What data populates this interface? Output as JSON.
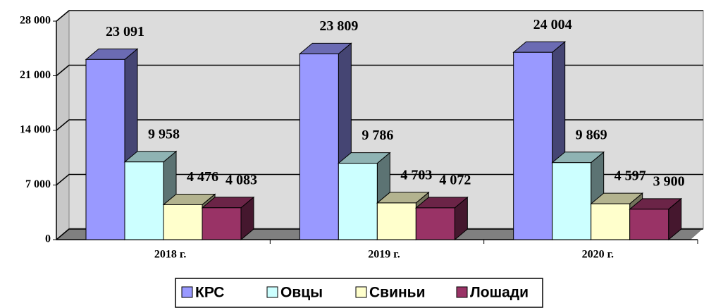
{
  "chart_data": {
    "type": "bar3d",
    "categories": [
      "2018 г.",
      "2019 г.",
      "2020 г."
    ],
    "series": [
      {
        "name": "КРС",
        "color": "#9999ff",
        "values": [
          23091,
          23809,
          24004
        ],
        "value_labels": [
          "23 091",
          "23 809",
          "24 004"
        ]
      },
      {
        "name": "Овцы",
        "color": "#ccffff",
        "values": [
          9958,
          9786,
          9869
        ],
        "value_labels": [
          "9 958",
          "9 786",
          "9 869"
        ]
      },
      {
        "name": "Свиньи",
        "color": "#ffffcc",
        "values": [
          4476,
          4703,
          4597
        ],
        "value_labels": [
          "4 476",
          "4 703",
          "4 597"
        ]
      },
      {
        "name": "Лошади",
        "color": "#993366",
        "values": [
          4083,
          4072,
          3900
        ],
        "value_labels": [
          "4 083",
          "4 072",
          "3 900"
        ]
      }
    ],
    "ylim": [
      0,
      28000
    ],
    "yticks": [
      0,
      {
        "value": 7000,
        "label": "7 000"
      },
      {
        "value": 14000,
        "label": "14 000"
      },
      {
        "value": 21000,
        "label": "21 000"
      },
      {
        "value": 28000,
        "label": "28 000"
      }
    ],
    "grid": true,
    "legend": "bottom"
  }
}
